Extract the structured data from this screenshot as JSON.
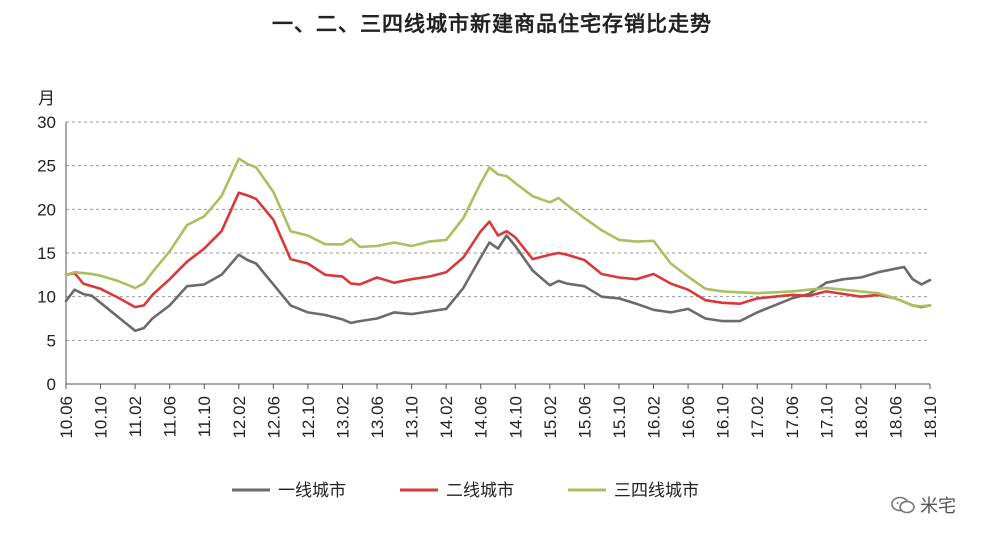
{
  "title": "一、二、三四线城市新建商品住宅存销比走势",
  "watermark": "米宅",
  "colors": {
    "tier1": "#6b6b6b",
    "tier2": "#d9393b",
    "tier34": "#a8c060",
    "grid": "#999999",
    "axis": "#555555"
  },
  "chart_data": {
    "type": "line",
    "title": "一、二、三四线城市新建商品住宅存销比走势",
    "ylabel": "月",
    "xlabel": "",
    "ylim": [
      0,
      30
    ],
    "yticks": [
      0,
      5,
      10,
      15,
      20,
      25,
      30
    ],
    "grid": "horizontal dashed",
    "legend": "bottom",
    "x_start": "2010.06",
    "x_end": "2018.10",
    "xtick_labels": [
      "10.06",
      "10.10",
      "11.02",
      "11.06",
      "11.10",
      "12.02",
      "12.06",
      "12.10",
      "13.02",
      "13.06",
      "13.10",
      "14.02",
      "14.06",
      "14.10",
      "15.02",
      "15.06",
      "15.10",
      "16.02",
      "16.06",
      "16.10",
      "17.02",
      "17.06",
      "17.10",
      "18.02",
      "18.06",
      "18.10"
    ],
    "series": [
      {
        "name": "一线城市",
        "color": "#6b6b6b",
        "points": [
          [
            "10.06",
            9.5
          ],
          [
            "10.07",
            10.8
          ],
          [
            "10.08",
            10.3
          ],
          [
            "10.09",
            10.1
          ],
          [
            "10.10",
            9.3
          ],
          [
            "10.12",
            7.7
          ],
          [
            "11.02",
            6.1
          ],
          [
            "11.03",
            6.4
          ],
          [
            "11.04",
            7.5
          ],
          [
            "11.06",
            9.0
          ],
          [
            "11.08",
            11.2
          ],
          [
            "11.10",
            11.4
          ],
          [
            "11.12",
            12.5
          ],
          [
            "12.02",
            14.8
          ],
          [
            "12.03",
            14.2
          ],
          [
            "12.04",
            13.8
          ],
          [
            "12.06",
            11.4
          ],
          [
            "12.08",
            9.0
          ],
          [
            "12.10",
            8.2
          ],
          [
            "12.12",
            7.9
          ],
          [
            "13.02",
            7.4
          ],
          [
            "13.03",
            7.0
          ],
          [
            "13.04",
            7.2
          ],
          [
            "13.06",
            7.5
          ],
          [
            "13.08",
            8.2
          ],
          [
            "13.10",
            8.0
          ],
          [
            "13.12",
            8.3
          ],
          [
            "14.02",
            8.6
          ],
          [
            "14.04",
            11.0
          ],
          [
            "14.06",
            14.5
          ],
          [
            "14.07",
            16.2
          ],
          [
            "14.08",
            15.5
          ],
          [
            "14.09",
            17.0
          ],
          [
            "14.10",
            15.8
          ],
          [
            "14.12",
            13.0
          ],
          [
            "15.02",
            11.3
          ],
          [
            "15.03",
            11.8
          ],
          [
            "15.04",
            11.5
          ],
          [
            "15.06",
            11.2
          ],
          [
            "15.08",
            10.0
          ],
          [
            "15.10",
            9.8
          ],
          [
            "15.12",
            9.2
          ],
          [
            "16.02",
            8.5
          ],
          [
            "16.04",
            8.2
          ],
          [
            "16.06",
            8.6
          ],
          [
            "16.08",
            7.5
          ],
          [
            "16.10",
            7.2
          ],
          [
            "16.12",
            7.2
          ],
          [
            "17.02",
            8.2
          ],
          [
            "17.04",
            9.0
          ],
          [
            "17.06",
            9.8
          ],
          [
            "17.08",
            10.3
          ],
          [
            "17.10",
            11.6
          ],
          [
            "17.12",
            12.0
          ],
          [
            "18.02",
            12.2
          ],
          [
            "18.04",
            12.8
          ],
          [
            "18.06",
            13.2
          ],
          [
            "18.07",
            13.4
          ],
          [
            "18.08",
            12.0
          ],
          [
            "18.09",
            11.4
          ],
          [
            "18.10",
            11.9
          ]
        ]
      },
      {
        "name": "二线城市",
        "color": "#d9393b",
        "points": [
          [
            "10.06",
            12.5
          ],
          [
            "10.07",
            12.7
          ],
          [
            "10.08",
            11.5
          ],
          [
            "10.09",
            11.2
          ],
          [
            "10.10",
            10.9
          ],
          [
            "10.12",
            9.9
          ],
          [
            "11.02",
            8.8
          ],
          [
            "11.03",
            9.0
          ],
          [
            "11.04",
            10.2
          ],
          [
            "11.06",
            12.0
          ],
          [
            "11.08",
            14.0
          ],
          [
            "11.10",
            15.5
          ],
          [
            "11.12",
            17.5
          ],
          [
            "12.02",
            21.9
          ],
          [
            "12.03",
            21.6
          ],
          [
            "12.04",
            21.2
          ],
          [
            "12.06",
            18.8
          ],
          [
            "12.08",
            14.3
          ],
          [
            "12.10",
            13.8
          ],
          [
            "12.12",
            12.5
          ],
          [
            "13.02",
            12.3
          ],
          [
            "13.03",
            11.5
          ],
          [
            "13.04",
            11.4
          ],
          [
            "13.06",
            12.2
          ],
          [
            "13.08",
            11.6
          ],
          [
            "13.10",
            12.0
          ],
          [
            "13.12",
            12.3
          ],
          [
            "14.02",
            12.8
          ],
          [
            "14.04",
            14.5
          ],
          [
            "14.06",
            17.5
          ],
          [
            "14.07",
            18.6
          ],
          [
            "14.08",
            17.0
          ],
          [
            "14.09",
            17.5
          ],
          [
            "14.10",
            16.8
          ],
          [
            "14.12",
            14.3
          ],
          [
            "15.02",
            14.8
          ],
          [
            "15.03",
            15.0
          ],
          [
            "15.04",
            14.8
          ],
          [
            "15.06",
            14.2
          ],
          [
            "15.08",
            12.6
          ],
          [
            "15.10",
            12.2
          ],
          [
            "15.12",
            12.0
          ],
          [
            "16.02",
            12.6
          ],
          [
            "16.04",
            11.5
          ],
          [
            "16.06",
            10.8
          ],
          [
            "16.08",
            9.6
          ],
          [
            "16.10",
            9.3
          ],
          [
            "16.12",
            9.2
          ],
          [
            "17.02",
            9.8
          ],
          [
            "17.04",
            10.0
          ],
          [
            "17.06",
            10.2
          ],
          [
            "17.08",
            10.1
          ],
          [
            "17.10",
            10.6
          ],
          [
            "17.12",
            10.3
          ],
          [
            "18.02",
            10.0
          ],
          [
            "18.04",
            10.2
          ],
          [
            "18.06",
            9.8
          ],
          [
            "18.07",
            9.4
          ],
          [
            "18.08",
            9.0
          ],
          [
            "18.09",
            8.8
          ],
          [
            "18.10",
            9.0
          ]
        ]
      },
      {
        "name": "三四线城市",
        "color": "#a8c060",
        "points": [
          [
            "10.06",
            12.5
          ],
          [
            "10.07",
            12.8
          ],
          [
            "10.08",
            12.7
          ],
          [
            "10.09",
            12.6
          ],
          [
            "10.10",
            12.4
          ],
          [
            "10.12",
            11.8
          ],
          [
            "11.02",
            11.0
          ],
          [
            "11.03",
            11.5
          ],
          [
            "11.04",
            12.8
          ],
          [
            "11.06",
            15.2
          ],
          [
            "11.08",
            18.2
          ],
          [
            "11.10",
            19.2
          ],
          [
            "11.12",
            21.5
          ],
          [
            "12.02",
            25.8
          ],
          [
            "12.03",
            25.2
          ],
          [
            "12.04",
            24.8
          ],
          [
            "12.06",
            22.0
          ],
          [
            "12.08",
            17.5
          ],
          [
            "12.10",
            17.0
          ],
          [
            "12.12",
            16.0
          ],
          [
            "13.02",
            16.0
          ],
          [
            "13.03",
            16.6
          ],
          [
            "13.04",
            15.7
          ],
          [
            "13.06",
            15.8
          ],
          [
            "13.08",
            16.2
          ],
          [
            "13.10",
            15.8
          ],
          [
            "13.12",
            16.3
          ],
          [
            "14.02",
            16.5
          ],
          [
            "14.04",
            19.0
          ],
          [
            "14.06",
            23.0
          ],
          [
            "14.07",
            24.8
          ],
          [
            "14.08",
            24.0
          ],
          [
            "14.09",
            23.8
          ],
          [
            "14.10",
            23.0
          ],
          [
            "14.12",
            21.5
          ],
          [
            "15.02",
            20.8
          ],
          [
            "15.03",
            21.3
          ],
          [
            "15.04",
            20.5
          ],
          [
            "15.06",
            19.0
          ],
          [
            "15.08",
            17.6
          ],
          [
            "15.10",
            16.5
          ],
          [
            "15.12",
            16.3
          ],
          [
            "16.02",
            16.4
          ],
          [
            "16.04",
            13.8
          ],
          [
            "16.06",
            12.3
          ],
          [
            "16.08",
            10.9
          ],
          [
            "16.10",
            10.6
          ],
          [
            "16.12",
            10.5
          ],
          [
            "17.02",
            10.4
          ],
          [
            "17.04",
            10.5
          ],
          [
            "17.06",
            10.6
          ],
          [
            "17.08",
            10.8
          ],
          [
            "17.10",
            11.0
          ],
          [
            "17.12",
            10.8
          ],
          [
            "18.02",
            10.6
          ],
          [
            "18.04",
            10.4
          ],
          [
            "18.06",
            9.8
          ],
          [
            "18.07",
            9.4
          ],
          [
            "18.08",
            9.0
          ],
          [
            "18.09",
            8.9
          ],
          [
            "18.10",
            9.0
          ]
        ]
      }
    ]
  }
}
